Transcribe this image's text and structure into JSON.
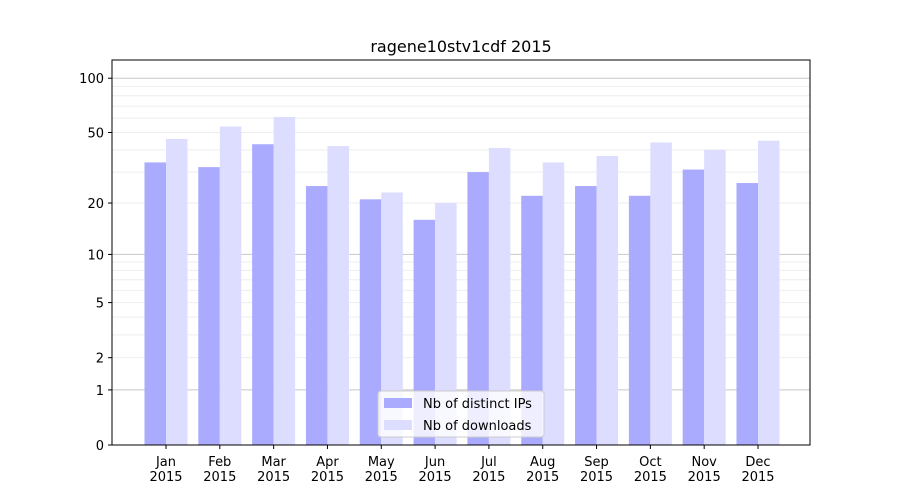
{
  "chart_data": {
    "type": "bar",
    "title": "ragene10stv1cdf 2015",
    "xlabel": "",
    "ylabel": "",
    "yscale": "log10(1+y)",
    "ylim": [
      0,
      126
    ],
    "yticks": [
      0,
      1,
      2,
      5,
      10,
      20,
      50,
      100
    ],
    "ytick_labels": [
      "0",
      "1",
      "2",
      "5",
      "10",
      "20",
      "50",
      "100"
    ],
    "grid": true,
    "legend_position": "bottom-center",
    "categories": [
      "Jan\n2015",
      "Feb\n2015",
      "Mar\n2015",
      "Apr\n2015",
      "May\n2015",
      "Jun\n2015",
      "Jul\n2015",
      "Aug\n2015",
      "Sep\n2015",
      "Oct\n2015",
      "Nov\n2015",
      "Dec\n2015"
    ],
    "series": [
      {
        "name": "Nb of distinct IPs",
        "color": "#aaaaff",
        "values": [
          34,
          32,
          43,
          25,
          21,
          16,
          30,
          22,
          25,
          22,
          31,
          26
        ]
      },
      {
        "name": "Nb of downloads",
        "color": "#ddddff",
        "values": [
          46,
          54,
          61,
          42,
          23,
          20,
          41,
          34,
          37,
          44,
          40,
          45
        ]
      }
    ]
  }
}
